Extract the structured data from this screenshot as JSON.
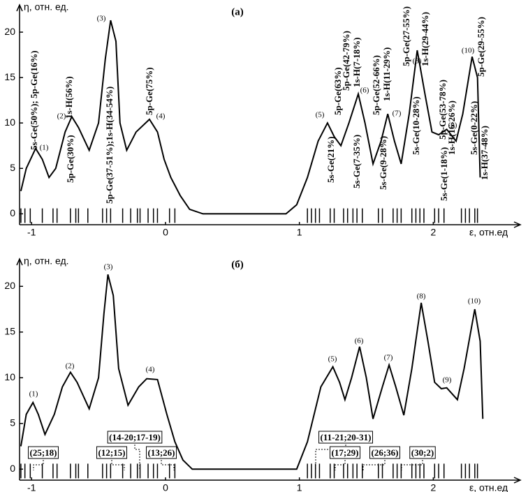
{
  "chart_data": [
    {
      "type": "line",
      "title": "(а)",
      "y_label": "η, отн. ед.",
      "x_label": "ε, отн.ед",
      "color": "#000000",
      "xlim": [
        -1.09,
        2.65
      ],
      "ylim": [
        -1.2,
        23
      ],
      "xticks": [
        -1,
        0,
        1,
        2
      ],
      "yticks": [
        0,
        5,
        10,
        15,
        20
      ],
      "x": [
        -1.08,
        -1.04,
        -0.97,
        -0.92,
        -0.87,
        -0.82,
        -0.75,
        -0.7,
        -0.65,
        -0.57,
        -0.5,
        -0.45,
        -0.41,
        -0.37,
        -0.34,
        -0.29,
        -0.22,
        -0.12,
        -0.06,
        -0.01,
        0.04,
        0.11,
        0.18,
        0.28,
        0.9,
        0.98,
        1.06,
        1.14,
        1.21,
        1.26,
        1.31,
        1.37,
        1.44,
        1.49,
        1.55,
        1.61,
        1.66,
        1.71,
        1.76,
        1.82,
        1.88,
        1.94,
        1.99,
        2.04,
        2.1,
        2.17,
        2.22,
        2.29,
        2.33,
        2.35
      ],
      "values": [
        2.5,
        5,
        7.2,
        6,
        4,
        5,
        9,
        10.7,
        9.5,
        7,
        10,
        17,
        21.3,
        19,
        10,
        7,
        9,
        10.4,
        9,
        6,
        4,
        2,
        0.5,
        0,
        0,
        1,
        4,
        8,
        10,
        8.5,
        7.5,
        10,
        13.2,
        10,
        5.5,
        8,
        11,
        8,
        5.5,
        11,
        18,
        13,
        9,
        8.7,
        9.3,
        8,
        11,
        17.3,
        15,
        4
      ],
      "levels": [
        -1.08,
        -1.05,
        -1.01,
        -0.92,
        -0.84,
        -0.81,
        -0.71,
        -0.67,
        -0.65,
        -0.58,
        -0.47,
        -0.44,
        -0.41,
        -0.32,
        -0.26,
        -0.21,
        -0.19,
        -0.13,
        -0.09,
        -0.06,
        0.03,
        0.07,
        1.06,
        1.09,
        1.12,
        1.15,
        1.23,
        1.26,
        1.33,
        1.36,
        1.4,
        1.43,
        1.47,
        1.59,
        1.62,
        1.7,
        1.73,
        1.76,
        1.84,
        1.87,
        1.9,
        1.93,
        2.01,
        2.04,
        2.08,
        2.21,
        2.24,
        2.27,
        2.31,
        2.33
      ],
      "peak_labels": [
        "(1)",
        "(2)",
        "(3)",
        "(4)",
        "(5)",
        "(6)",
        "(7)",
        "(8)",
        "(9)",
        "(10)"
      ],
      "annotations": [
        "5s-Ge(50%); 5p-Ge(16%)",
        "1s-H(56%)",
        "5p-Ge(30%)",
        "5p-Ge(37-51%);1s-H(34-54%)",
        "5p-Ge(75%)",
        "5s-Ge(21%)",
        "5p-Ge(63%)",
        "5p-Ge(42-79%)",
        "1s-H(7-18%)",
        "5s-Ge(7-35%)",
        "5p-Ge(52-66%)",
        "5s-Ge(9-28%)",
        "1s-H(11-29%)",
        "5p-Ge(27-55%)",
        "5s-Ge(10-28%)",
        "1s-H(29-44%)",
        "5p-Ge(53-78%)",
        "1s-H(16-26%)",
        "5s-Ge(1-18%)",
        "5s-Ge(0-22%)",
        "1s-H(37-48%)",
        "5p-Ge(29-55%)"
      ]
    },
    {
      "type": "line",
      "title": "(б)",
      "y_label": "η, отн. ед.",
      "x_label": "ε, отн.ед",
      "color": "#000000",
      "xlim": [
        -1.09,
        2.65
      ],
      "ylim": [
        -1.2,
        23
      ],
      "xticks": [
        -1,
        0,
        1,
        2
      ],
      "yticks": [
        0,
        5,
        10,
        15,
        20
      ],
      "x": [
        -1.08,
        -1.04,
        -0.99,
        -0.95,
        -0.9,
        -0.83,
        -0.77,
        -0.71,
        -0.66,
        -0.57,
        -0.5,
        -0.46,
        -0.43,
        -0.39,
        -0.35,
        -0.28,
        -0.2,
        -0.14,
        -0.06,
        0.01,
        0.07,
        0.13,
        0.2,
        0.98,
        1.06,
        1.16,
        1.25,
        1.3,
        1.34,
        1.39,
        1.45,
        1.5,
        1.55,
        1.62,
        1.67,
        1.72,
        1.78,
        1.84,
        1.91,
        1.96,
        2.01,
        2.06,
        2.1,
        2.18,
        2.23,
        2.31,
        2.35,
        2.37
      ],
      "values": [
        2.5,
        6,
        7.3,
        6,
        3.8,
        6,
        9,
        10.6,
        9.5,
        6.6,
        10,
        17,
        21.3,
        19,
        11,
        7,
        9,
        9.9,
        9.8,
        6,
        3,
        1,
        0,
        0,
        3,
        9,
        11.2,
        9.5,
        7.6,
        10,
        13.4,
        10,
        5.5,
        9,
        11.4,
        9,
        5.9,
        11,
        18.2,
        14,
        9.5,
        8.8,
        8.9,
        7.6,
        11,
        17.5,
        14,
        5.5
      ],
      "levels": [
        -1.08,
        -1.05,
        -1.01,
        -0.92,
        -0.84,
        -0.81,
        -0.71,
        -0.67,
        -0.65,
        -0.58,
        -0.47,
        -0.44,
        -0.41,
        -0.32,
        -0.26,
        -0.21,
        -0.19,
        -0.13,
        -0.09,
        -0.06,
        0.03,
        0.07,
        1.06,
        1.09,
        1.12,
        1.15,
        1.23,
        1.26,
        1.33,
        1.36,
        1.4,
        1.43,
        1.47,
        1.59,
        1.62,
        1.7,
        1.73,
        1.76,
        1.84,
        1.87,
        1.9,
        1.93,
        2.01,
        2.04,
        2.08,
        2.21,
        2.24,
        2.27,
        2.31,
        2.33
      ],
      "peak_labels": [
        "(1)",
        "(2)",
        "(3)",
        "(4)",
        "(5)",
        "(6)",
        "(7)",
        "(8)",
        "(9)",
        "(10)"
      ],
      "annotations": [
        "(25;18)",
        "(14-20;17-19)",
        "(12;15)",
        "(13;26)",
        "(11-21;20-31)",
        "(17;29)",
        "(26;36)",
        "(30;2)"
      ]
    }
  ]
}
